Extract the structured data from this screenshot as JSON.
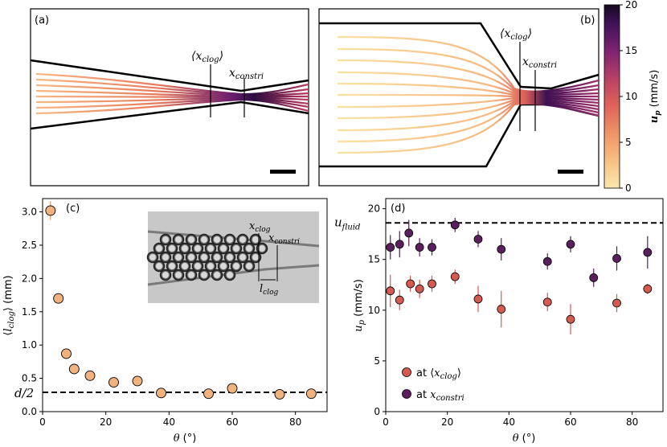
{
  "panels": {
    "a": {
      "label": "(a)",
      "annotations": [
        "⟨x_clog⟩",
        "x_constri"
      ],
      "clog_sub": "clog",
      "constri_sub": "constri"
    },
    "b": {
      "label": "(b)",
      "annotations": [
        "⟨x_clog⟩",
        "x_constri"
      ],
      "clog_sub": "clog",
      "constri_sub": "constri"
    }
  },
  "colorbar": {
    "label": "u_p (mm/s)",
    "label_main": "u",
    "label_sub": "p",
    "label_unit": "(mm/s)",
    "min": 0,
    "max": 20,
    "ticks": [
      "0",
      "5",
      "10",
      "15",
      "20"
    ],
    "colors": [
      "#fbe5a6",
      "#f5b17a",
      "#ec7a5a",
      "#d04b5e",
      "#a3306e",
      "#6e1c76",
      "#3a0f55",
      "#120a1e"
    ]
  },
  "chart_data": [
    {
      "panel": "(c)",
      "type": "scatter",
      "xlabel": "θ (°)",
      "ylabel": "⟨l_clog⟩ (mm)",
      "ylabel_main": "l",
      "ylabel_sub": "clog",
      "ylabel_unit": "(mm)",
      "xlim": [
        0,
        90
      ],
      "ylim": [
        0,
        3.2
      ],
      "xticks": [
        "0",
        "20",
        "40",
        "60",
        "80"
      ],
      "yticks": [
        "0.0",
        "0.5",
        "1.0",
        "1.5",
        "2.0",
        "2.5",
        "3.0"
      ],
      "marker_color": "#f0b27f",
      "series": [
        {
          "name": "l_clog",
          "x": [
            2.5,
            5,
            7.5,
            10,
            15,
            22.5,
            30,
            37.5,
            52.5,
            60,
            75,
            85
          ],
          "y": [
            3.02,
            1.7,
            0.87,
            0.64,
            0.54,
            0.44,
            0.46,
            0.28,
            0.27,
            0.35,
            0.26,
            0.27
          ],
          "yerr": [
            0.14,
            0.03,
            0.02,
            0.02,
            0.02,
            0.02,
            0.02,
            0.02,
            0.02,
            0.02,
            0.02,
            0.02
          ]
        }
      ],
      "reference_line": {
        "label": "d/2",
        "y": 0.29
      },
      "inset": {
        "labels": [
          "x_clog",
          "x_constri",
          "l_clog"
        ],
        "clog_main": "x",
        "clog_sub": "clog",
        "constri_main": "x",
        "constri_sub": "constri",
        "l_main": "l",
        "l_sub": "clog"
      }
    },
    {
      "panel": "(d)",
      "type": "scatter",
      "xlabel": "θ (°)",
      "ylabel": "u_p (mm/s)",
      "ylabel_main": "u",
      "ylabel_sub": "p",
      "ylabel_unit": "(mm/s)",
      "xlim": [
        0,
        90
      ],
      "ylim": [
        0,
        21
      ],
      "xticks": [
        "0",
        "20",
        "40",
        "60",
        "80"
      ],
      "yticks": [
        "0",
        "5",
        "10",
        "15",
        "20"
      ],
      "reference_line": {
        "label": "u_fluid",
        "main": "u",
        "sub": "fluid",
        "y": 18.6
      },
      "series": [
        {
          "name": "at ⟨x_clog⟩",
          "legend_prefix": "at",
          "legend_main": "x",
          "legend_sub": "clog",
          "color": "#d45a52",
          "x": [
            1.5,
            4.5,
            8,
            11,
            15,
            22.5,
            30,
            37.5,
            52.5,
            60,
            75,
            85
          ],
          "y": [
            11.9,
            11.0,
            12.6,
            12.1,
            12.6,
            13.3,
            11.1,
            10.1,
            10.8,
            9.1,
            10.7,
            12.1
          ],
          "yerr": [
            1.6,
            1.0,
            0.8,
            0.9,
            0.8,
            0.7,
            1.3,
            1.8,
            0.9,
            1.5,
            0.9,
            0.5
          ]
        },
        {
          "name": "at x_constri",
          "legend_prefix": "at",
          "legend_main": "x",
          "legend_sub": "constri",
          "color": "#5a1f5c",
          "x": [
            1.5,
            4.5,
            7.5,
            11,
            15,
            22.5,
            30,
            37.5,
            52.5,
            60,
            67.5,
            75,
            85
          ],
          "y": [
            16.2,
            16.5,
            17.6,
            16.2,
            16.2,
            18.4,
            17.0,
            16.0,
            14.8,
            16.5,
            13.2,
            15.1,
            15.7
          ],
          "yerr": [
            1.2,
            1.3,
            1.3,
            0.9,
            0.8,
            0.7,
            0.8,
            1.1,
            0.8,
            0.8,
            0.9,
            1.2,
            1.6
          ]
        }
      ]
    }
  ]
}
